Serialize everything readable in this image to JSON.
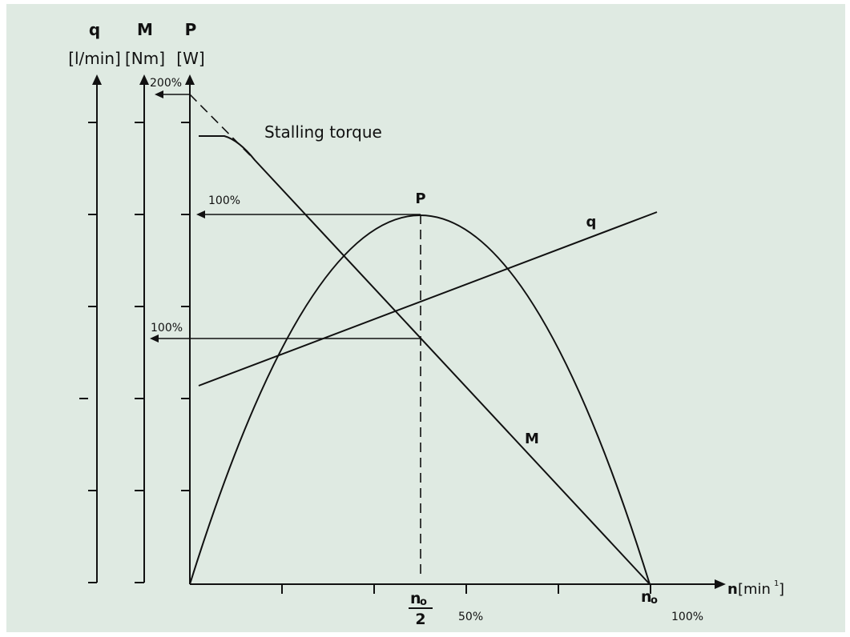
{
  "axes": {
    "q": {
      "symbol": "q",
      "unit": "[l/min]"
    },
    "M": {
      "symbol": "M",
      "unit": "[Nm]"
    },
    "P": {
      "symbol": "P",
      "unit": "[W]"
    },
    "n": {
      "label": "n",
      "unit": "[min",
      "unit_sup": "1",
      "unit_close": "]"
    }
  },
  "annotations": {
    "pct_200": "200%",
    "pct_100_p": "100%",
    "pct_100_m": "100%",
    "stalling": "Stalling torque",
    "x_50": "50%",
    "x_100": "100%"
  },
  "curve_labels": {
    "P": "P",
    "q": "q",
    "M": "M"
  },
  "x_marks": {
    "half_num": "n",
    "half_sub": "o",
    "half_den": "2",
    "n0": "n",
    "n0_sub": "o"
  }
}
